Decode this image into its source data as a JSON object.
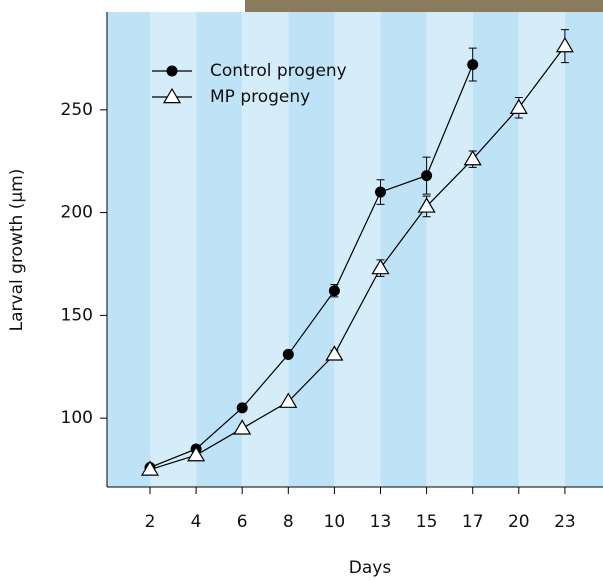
{
  "chart_data": {
    "type": "line",
    "x_label": "Days",
    "y_label": "Larval growth (μm)",
    "categories": [
      "2",
      "4",
      "6",
      "8",
      "10",
      "13",
      "15",
      "17",
      "20",
      "23"
    ],
    "ylim": [
      66.5,
      297.6
    ],
    "yticks": [
      100,
      150,
      200,
      250
    ],
    "legend": "top-left",
    "series": [
      {
        "name": "Control progeny",
        "color": "#000000",
        "marker": "circle",
        "values": [
          76,
          85,
          105,
          131,
          162,
          210,
          218,
          272,
          null,
          null
        ],
        "errors": [
          1,
          1,
          1,
          1,
          3,
          6,
          9,
          8,
          null,
          null
        ]
      },
      {
        "name": "MP progeny",
        "color": "#000000",
        "marker": "triangle",
        "values": [
          75,
          82,
          95,
          108,
          131,
          173,
          203,
          226,
          251,
          281
        ],
        "errors": [
          1,
          1,
          1,
          1,
          2,
          4,
          5,
          4,
          5,
          8
        ]
      }
    ]
  }
}
